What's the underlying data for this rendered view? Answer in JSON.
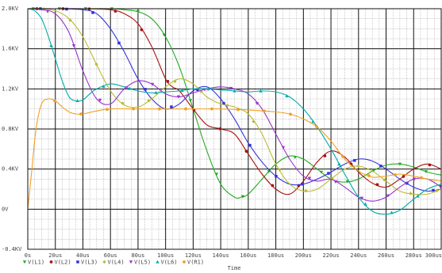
{
  "chart_data": {
    "type": "line",
    "title": "",
    "xlabel": "Time",
    "ylabel": "",
    "xlim": [
      0,
      300
    ],
    "ylim": [
      -0.4,
      2.0
    ],
    "x_ticks": [
      {
        "value": 0,
        "label": "0s"
      },
      {
        "value": 20,
        "label": "20us"
      },
      {
        "value": 40,
        "label": "40us"
      },
      {
        "value": 60,
        "label": "60us"
      },
      {
        "value": 80,
        "label": "80us"
      },
      {
        "value": 100,
        "label": "100us"
      },
      {
        "value": 120,
        "label": "120us"
      },
      {
        "value": 140,
        "label": "140us"
      },
      {
        "value": 160,
        "label": "160us"
      },
      {
        "value": 180,
        "label": "180us"
      },
      {
        "value": 200,
        "label": "200us"
      },
      {
        "value": 220,
        "label": "220us"
      },
      {
        "value": 240,
        "label": "240us"
      },
      {
        "value": 260,
        "label": "260us"
      },
      {
        "value": 280,
        "label": "280us"
      },
      {
        "value": 300,
        "label": "300us"
      }
    ],
    "y_ticks": [
      {
        "value": 2.0,
        "label": "2.0KV"
      },
      {
        "value": 1.6,
        "label": "1.6KV"
      },
      {
        "value": 1.2,
        "label": "1.2KV"
      },
      {
        "value": 0.8,
        "label": "0.8KV"
      },
      {
        "value": 0.4,
        "label": "0.4KV"
      },
      {
        "value": 0.0,
        "label": "0V"
      },
      {
        "value": -0.4,
        "label": "-0.4KV"
      }
    ],
    "grid": true,
    "legend_position": "bottom",
    "series": [
      {
        "name": "V(L1)",
        "color": "#22aa22",
        "marker": "triangle-down",
        "x": [
          0,
          20,
          40,
          60,
          70,
          80,
          90,
          100,
          110,
          120,
          130,
          140,
          150,
          155,
          160,
          170,
          180,
          190,
          200,
          210,
          220,
          230,
          240,
          250,
          260,
          270,
          280,
          290,
          300
        ],
        "y": [
          2.0,
          2.0,
          2.0,
          2.0,
          1.99,
          1.97,
          1.9,
          1.72,
          1.42,
          1.0,
          0.58,
          0.25,
          0.12,
          0.12,
          0.15,
          0.3,
          0.45,
          0.53,
          0.5,
          0.4,
          0.3,
          0.27,
          0.3,
          0.38,
          0.44,
          0.45,
          0.42,
          0.37,
          0.34
        ]
      },
      {
        "name": "V(L2)",
        "color": "#aa1111",
        "marker": "circle",
        "x": [
          0,
          20,
          40,
          60,
          70,
          80,
          90,
          100,
          105,
          110,
          120,
          130,
          140,
          150,
          160,
          170,
          180,
          190,
          200,
          210,
          220,
          230,
          240,
          250,
          260,
          270,
          280,
          290,
          300
        ],
        "y": [
          2.0,
          2.0,
          2.0,
          1.99,
          1.95,
          1.85,
          1.62,
          1.3,
          1.22,
          1.18,
          1.0,
          0.84,
          0.8,
          0.75,
          0.55,
          0.35,
          0.2,
          0.15,
          0.28,
          0.47,
          0.58,
          0.52,
          0.37,
          0.26,
          0.22,
          0.3,
          0.4,
          0.45,
          0.4
        ]
      },
      {
        "name": "V(L3)",
        "color": "#3333dd",
        "marker": "square",
        "x": [
          0,
          20,
          40,
          50,
          60,
          70,
          80,
          90,
          100,
          110,
          120,
          130,
          140,
          150,
          160,
          170,
          180,
          190,
          200,
          210,
          220,
          230,
          240,
          250,
          260,
          270,
          280,
          290,
          300
        ],
        "y": [
          2.0,
          2.0,
          1.99,
          1.95,
          1.8,
          1.57,
          1.3,
          1.1,
          1.0,
          1.05,
          1.18,
          1.22,
          1.1,
          0.9,
          0.66,
          0.47,
          0.33,
          0.25,
          0.25,
          0.3,
          0.37,
          0.45,
          0.5,
          0.48,
          0.4,
          0.3,
          0.22,
          0.18,
          0.2
        ]
      },
      {
        "name": "V(L4)",
        "color": "#bbbb33",
        "marker": "diamond",
        "x": [
          0,
          10,
          20,
          30,
          40,
          50,
          60,
          70,
          80,
          90,
          100,
          110,
          120,
          130,
          140,
          150,
          160,
          170,
          180,
          190,
          200,
          210,
          220,
          230,
          240,
          250,
          260,
          270,
          280,
          290,
          300
        ],
        "y": [
          2.0,
          2.0,
          1.98,
          1.9,
          1.72,
          1.44,
          1.18,
          1.04,
          1.02,
          1.1,
          1.22,
          1.3,
          1.25,
          1.12,
          1.05,
          1.02,
          0.95,
          0.75,
          0.45,
          0.25,
          0.18,
          0.2,
          0.3,
          0.4,
          0.43,
          0.38,
          0.28,
          0.18,
          0.15,
          0.15,
          0.2
        ]
      },
      {
        "name": "V(L5)",
        "color": "#9933cc",
        "marker": "triangle-down",
        "x": [
          0,
          10,
          20,
          30,
          40,
          50,
          60,
          70,
          80,
          90,
          100,
          110,
          120,
          130,
          140,
          150,
          160,
          170,
          180,
          190,
          200,
          210,
          220,
          230,
          240,
          250,
          260,
          270,
          280,
          290,
          300
        ],
        "y": [
          2.0,
          1.99,
          1.95,
          1.76,
          1.38,
          1.1,
          1.05,
          1.2,
          1.28,
          1.25,
          1.15,
          1.12,
          1.16,
          1.2,
          1.22,
          1.2,
          1.15,
          1.0,
          0.75,
          0.5,
          0.33,
          0.28,
          0.3,
          0.22,
          0.12,
          0.08,
          0.12,
          0.22,
          0.3,
          0.3,
          0.22
        ]
      },
      {
        "name": "V(L6)",
        "color": "#00aaaa",
        "marker": "triangle-up",
        "x": [
          0,
          5,
          10,
          15,
          20,
          25,
          30,
          35,
          40,
          45,
          50,
          60,
          70,
          80,
          90,
          100,
          110,
          120,
          130,
          140,
          150,
          160,
          170,
          180,
          190,
          200,
          210,
          220,
          230,
          240,
          250,
          260,
          270,
          280,
          290,
          300
        ],
        "y": [
          2.0,
          1.98,
          1.9,
          1.72,
          1.5,
          1.28,
          1.12,
          1.08,
          1.09,
          1.15,
          1.2,
          1.25,
          1.22,
          1.18,
          1.16,
          1.17,
          1.18,
          1.2,
          1.2,
          1.19,
          1.18,
          1.17,
          1.18,
          1.17,
          1.12,
          1.0,
          0.82,
          0.6,
          0.35,
          0.12,
          -0.02,
          -0.05,
          -0.01,
          0.1,
          0.2,
          0.25
        ]
      },
      {
        "name": "V(R1)",
        "color": "#f0a020",
        "marker": "circle",
        "x": [
          0,
          3,
          6,
          10,
          15,
          20,
          25,
          30,
          35,
          40,
          50,
          60,
          80,
          100,
          120,
          140,
          160,
          180,
          190,
          200,
          210,
          220,
          230,
          240,
          250,
          260,
          270,
          280,
          290,
          300
        ],
        "y": [
          0.0,
          0.4,
          0.8,
          1.05,
          1.1,
          1.08,
          1.02,
          0.97,
          0.95,
          0.95,
          0.98,
          1.0,
          1.0,
          1.0,
          1.0,
          1.0,
          0.99,
          0.97,
          0.95,
          0.9,
          0.82,
          0.68,
          0.5,
          0.38,
          0.32,
          0.33,
          0.35,
          0.33,
          0.3,
          0.28
        ]
      }
    ]
  }
}
